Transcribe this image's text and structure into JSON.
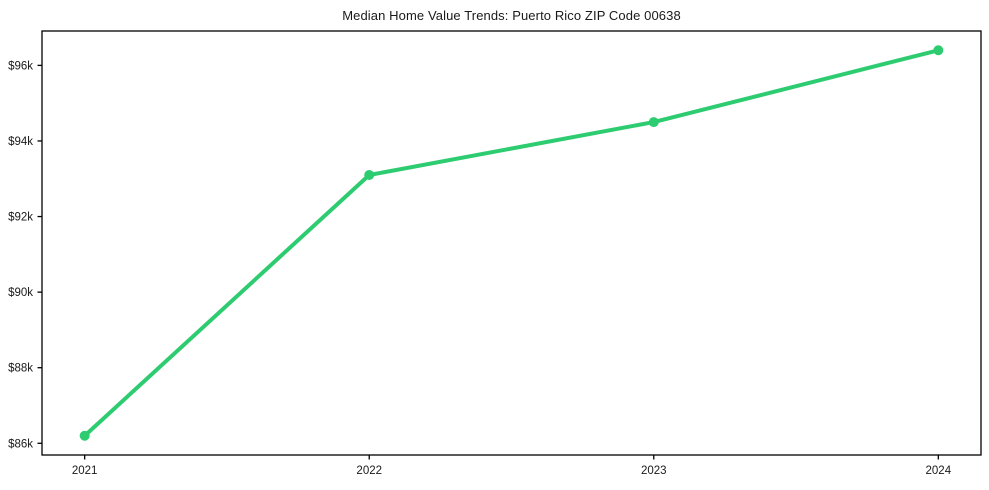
{
  "chart_data": {
    "type": "line",
    "title": "Median Home Value Trends: Puerto Rico ZIP Code 00638",
    "x": [
      2021,
      2022,
      2023,
      2024
    ],
    "x_tick_labels": [
      "2021",
      "2022",
      "2023",
      "2024"
    ],
    "values": [
      86200,
      93100,
      94500,
      96400
    ],
    "y_ticks": [
      86000,
      88000,
      90000,
      92000,
      94000,
      96000
    ],
    "y_tick_labels": [
      "$86k",
      "$88k",
      "$90k",
      "$92k",
      "$94k",
      "$96k"
    ],
    "xlim": [
      2020.85,
      2024.15
    ],
    "ylim": [
      85690,
      96910
    ],
    "grid": false,
    "legend": "none",
    "marker": "circle",
    "line_width": 4,
    "marker_size": 10,
    "colors": {
      "line": "#2ecc71",
      "marker": "#2ecc71",
      "axis": "#000000",
      "text": "#1a1a1a",
      "background": "#ffffff"
    }
  }
}
